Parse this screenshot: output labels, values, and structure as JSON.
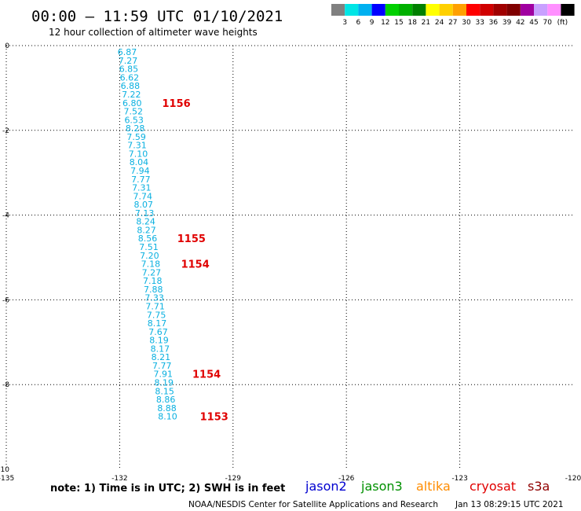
{
  "header": {
    "title": "00:00 – 11:59 UTC 01/10/2021",
    "subtitle": "12 hour collection of altimeter wave heights"
  },
  "colorbar": {
    "colors": [
      "#808080",
      "#00e5e5",
      "#00b0f0",
      "#0000ff",
      "#00d000",
      "#00b000",
      "#008000",
      "#ffff00",
      "#ffd000",
      "#ffa000",
      "#ff0000",
      "#d00000",
      "#a00000",
      "#800000",
      "#a000a0",
      "#c8a0ff",
      "#ff90ff",
      "#000000"
    ],
    "labels": [
      "3",
      "6",
      "9",
      "12",
      "15",
      "18",
      "21",
      "24",
      "27",
      "30",
      "33",
      "36",
      "39",
      "42",
      "45",
      "70"
    ],
    "unit": "(ft)"
  },
  "footer": {
    "note": "note: 1) Time is in UTC; 2) SWH is in feet",
    "credit": "NOAA/NESDIS Center for Satellite Applications and Research",
    "timestamp": "Jan 13 08:29:15 UTC 2021"
  },
  "satellites": [
    {
      "name": "jason2",
      "color": "#0000d0"
    },
    {
      "name": "jason3",
      "color": "#009000"
    },
    {
      "name": "altika",
      "color": "#ff8c00"
    },
    {
      "name": "cryosat",
      "color": "#e00000"
    },
    {
      "name": "s3a",
      "color": "#900000"
    }
  ],
  "chart_data": {
    "type": "scatter",
    "xlim": [
      -135,
      -120
    ],
    "ylim": [
      -10,
      0
    ],
    "x_ticks": [
      "-135",
      "-132",
      "-129",
      "-126",
      "-123",
      "-120"
    ],
    "y_ticks": [
      "0",
      "-2",
      "-4",
      "-6",
      "-8",
      "-10"
    ],
    "grid": true,
    "value_color": "#0ab0e0",
    "time_color": "#e00000",
    "swh_values": [
      {
        "x": -131.8,
        "y": -0.15,
        "v": "6.87"
      },
      {
        "x": -131.78,
        "y": -0.35,
        "v": "7.27"
      },
      {
        "x": -131.76,
        "y": -0.55,
        "v": "6.85"
      },
      {
        "x": -131.74,
        "y": -0.75,
        "v": "6.62"
      },
      {
        "x": -131.72,
        "y": -0.95,
        "v": "6.88"
      },
      {
        "x": -131.69,
        "y": -1.15,
        "v": "7.22"
      },
      {
        "x": -131.67,
        "y": -1.35,
        "v": "6.80"
      },
      {
        "x": -131.64,
        "y": -1.55,
        "v": "7.52"
      },
      {
        "x": -131.62,
        "y": -1.75,
        "v": "6.53"
      },
      {
        "x": -131.59,
        "y": -1.95,
        "v": "8.28"
      },
      {
        "x": -131.56,
        "y": -2.15,
        "v": "7.59"
      },
      {
        "x": -131.54,
        "y": -2.35,
        "v": "7.31"
      },
      {
        "x": -131.51,
        "y": -2.55,
        "v": "7.10"
      },
      {
        "x": -131.49,
        "y": -2.75,
        "v": "8.04"
      },
      {
        "x": -131.46,
        "y": -2.95,
        "v": "7.94"
      },
      {
        "x": -131.44,
        "y": -3.15,
        "v": "7.77"
      },
      {
        "x": -131.42,
        "y": -3.35,
        "v": "7.31"
      },
      {
        "x": -131.39,
        "y": -3.55,
        "v": "7.74"
      },
      {
        "x": -131.37,
        "y": -3.75,
        "v": "8.07"
      },
      {
        "x": -131.34,
        "y": -3.95,
        "v": "7.13"
      },
      {
        "x": -131.31,
        "y": -4.15,
        "v": "8.24"
      },
      {
        "x": -131.29,
        "y": -4.35,
        "v": "8.27"
      },
      {
        "x": -131.26,
        "y": -4.55,
        "v": "8.56"
      },
      {
        "x": -131.23,
        "y": -4.75,
        "v": "7.51"
      },
      {
        "x": -131.21,
        "y": -4.95,
        "v": "7.20"
      },
      {
        "x": -131.18,
        "y": -5.15,
        "v": "7.18"
      },
      {
        "x": -131.16,
        "y": -5.35,
        "v": "7.27"
      },
      {
        "x": -131.13,
        "y": -5.55,
        "v": "7.18"
      },
      {
        "x": -131.11,
        "y": -5.75,
        "v": "7.88"
      },
      {
        "x": -131.08,
        "y": -5.95,
        "v": "7.33"
      },
      {
        "x": -131.06,
        "y": -6.15,
        "v": "7.71"
      },
      {
        "x": -131.03,
        "y": -6.35,
        "v": "7.75"
      },
      {
        "x": -131.01,
        "y": -6.55,
        "v": "8.17"
      },
      {
        "x": -130.98,
        "y": -6.75,
        "v": "7.67"
      },
      {
        "x": -130.96,
        "y": -6.95,
        "v": "8.19"
      },
      {
        "x": -130.93,
        "y": -7.15,
        "v": "8.17"
      },
      {
        "x": -130.91,
        "y": -7.35,
        "v": "8.21"
      },
      {
        "x": -130.88,
        "y": -7.55,
        "v": "7.77"
      },
      {
        "x": -130.85,
        "y": -7.75,
        "v": "7.91"
      },
      {
        "x": -130.83,
        "y": -7.95,
        "v": "8.19"
      },
      {
        "x": -130.81,
        "y": -8.15,
        "v": "8.15"
      },
      {
        "x": -130.78,
        "y": -8.35,
        "v": "8.86"
      },
      {
        "x": -130.75,
        "y": -8.55,
        "v": "8.88"
      },
      {
        "x": -130.73,
        "y": -8.75,
        "v": "8.10"
      }
    ],
    "time_labels": [
      {
        "x": -130.5,
        "y": -1.35,
        "v": "1156"
      },
      {
        "x": -130.1,
        "y": -4.55,
        "v": "1155"
      },
      {
        "x": -130.0,
        "y": -5.15,
        "v": "1154"
      },
      {
        "x": -129.7,
        "y": -7.75,
        "v": "1154"
      },
      {
        "x": -129.5,
        "y": -8.75,
        "v": "1153"
      }
    ]
  }
}
